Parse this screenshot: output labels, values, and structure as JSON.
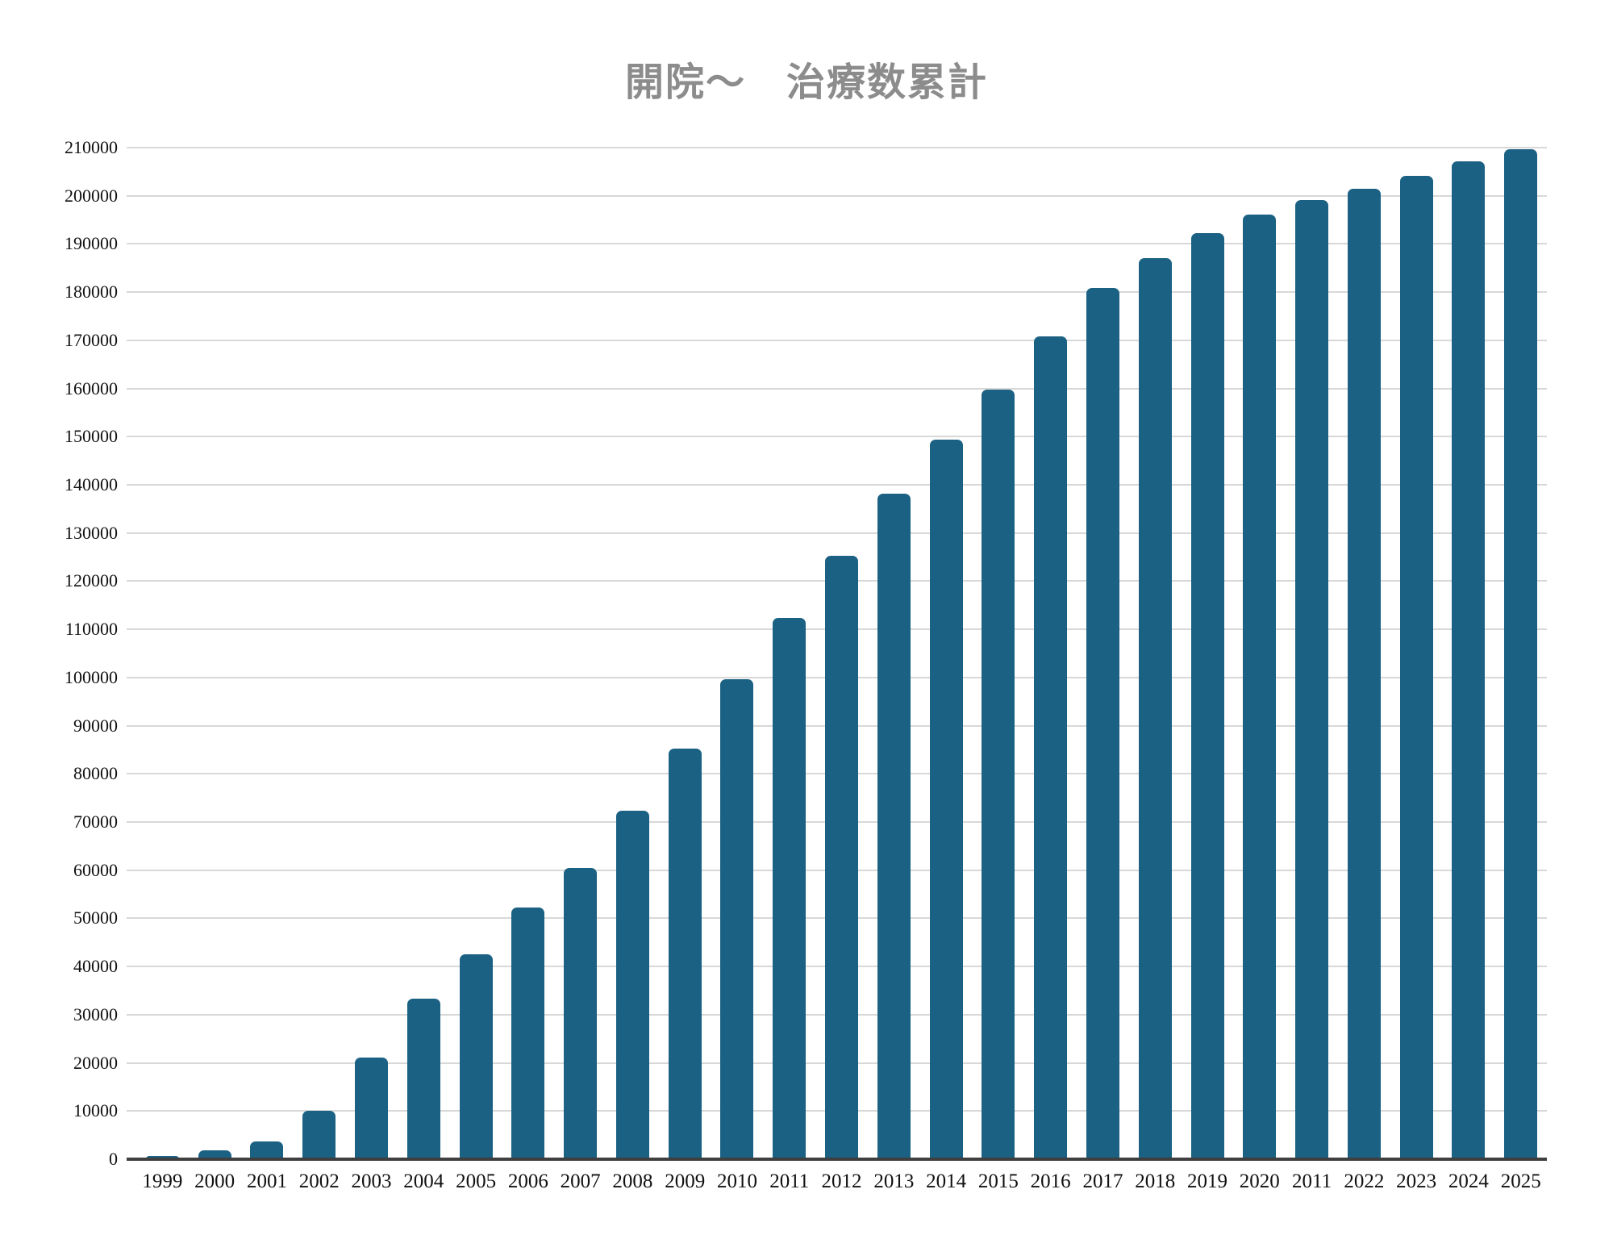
{
  "title": "開院〜　治療数累計",
  "chart_data": {
    "type": "bar",
    "title": "開院〜　治療数累計",
    "categories": [
      "1999",
      "2000",
      "2001",
      "2002",
      "2003",
      "2004",
      "2005",
      "2006",
      "2007",
      "2008",
      "2009",
      "2010",
      "2011",
      "2012",
      "2013",
      "2014",
      "2015",
      "2016",
      "2017",
      "2018",
      "2019",
      "2020",
      "2011",
      "2022",
      "2023",
      "2024",
      "2025"
    ],
    "values": [
      700,
      1800,
      3700,
      10100,
      21100,
      33300,
      42600,
      52300,
      60400,
      72300,
      85300,
      99700,
      112300,
      125200,
      138200,
      149300,
      159800,
      170800,
      180900,
      187000,
      192300,
      196100,
      199100,
      201500,
      204100,
      207200,
      209700
    ],
    "xlabel": "",
    "ylabel": "",
    "ylim": [
      0,
      210000
    ],
    "ytick_step": 10000,
    "yticks": [
      0,
      10000,
      20000,
      30000,
      40000,
      50000,
      60000,
      70000,
      80000,
      90000,
      100000,
      110000,
      120000,
      130000,
      140000,
      150000,
      160000,
      170000,
      180000,
      190000,
      200000,
      210000
    ],
    "grid": true,
    "legend_position": "none",
    "bar_color": "#1b6183",
    "grid_color": "#d8d8d8",
    "axis_color": "#3f3f3f",
    "tick_label_color": "#111111",
    "title_color": "#8c8c8c",
    "background_color": "#ffffff"
  }
}
